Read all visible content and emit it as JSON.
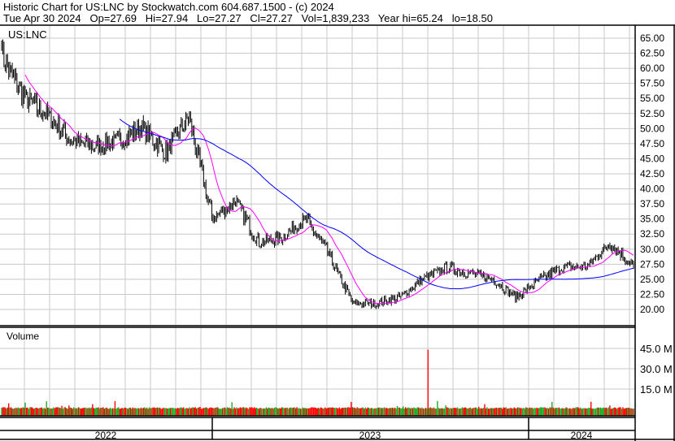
{
  "header": {
    "title": "Historic Chart for US:LNC by Stockwatch.com 604.687.1500 - (c) 2024",
    "quote": "Tue Apr 30 2024   Op=27.69   Hi=27.94   Lo=27.27   Cl=27.27   Vol=1,839,233   Year hi=65.24   lo=18.50"
  },
  "colors": {
    "up": "#22aa22",
    "down": "#ff0000",
    "ma_short": "#ff00ff",
    "ma_long": "#0000ff",
    "grid": "#c8c8c8"
  },
  "chart_data": {
    "type": "candlestick",
    "symbol_label": "US:LNC",
    "price_ticks": [
      "65.00",
      "62.50",
      "60.00",
      "57.50",
      "55.00",
      "52.50",
      "50.00",
      "47.50",
      "45.00",
      "42.50",
      "40.00",
      "37.50",
      "35.00",
      "32.50",
      "30.00",
      "27.50",
      "25.00",
      "22.50",
      "20.00"
    ],
    "ylim": [
      20,
      65
    ],
    "volume_label": "Volume",
    "volume_ticks": [
      "45.0 M",
      "30.0 M",
      "15.0 M"
    ],
    "year_labels": [
      "2022",
      "2023",
      "2024"
    ],
    "monthly_close": [
      [
        "2022-01",
        62
      ],
      [
        "2022-02",
        55
      ],
      [
        "2022-03",
        52
      ],
      [
        "2022-04",
        48
      ],
      [
        "2022-05",
        47
      ],
      [
        "2022-06",
        48
      ],
      [
        "2022-07",
        50
      ],
      [
        "2022-08",
        46
      ],
      [
        "2022-09",
        52
      ],
      [
        "2022-10",
        35
      ],
      [
        "2022-11",
        38
      ],
      [
        "2022-12",
        31
      ],
      [
        "2023-01",
        32
      ],
      [
        "2023-02",
        35
      ],
      [
        "2023-03",
        29
      ],
      [
        "2023-04",
        21
      ],
      [
        "2023-05",
        21
      ],
      [
        "2023-06",
        22
      ],
      [
        "2023-07",
        25
      ],
      [
        "2023-08",
        27
      ],
      [
        "2023-09",
        26
      ],
      [
        "2023-10",
        25
      ],
      [
        "2023-11",
        22
      ],
      [
        "2023-12",
        25
      ],
      [
        "2024-01",
        27
      ],
      [
        "2024-02",
        27
      ],
      [
        "2024-03",
        31
      ],
      [
        "2024-04",
        27.27
      ]
    ],
    "volume_spike": {
      "date": "2023-07",
      "value_millions": 44
    },
    "moving_averages": [
      "short",
      "long"
    ]
  }
}
